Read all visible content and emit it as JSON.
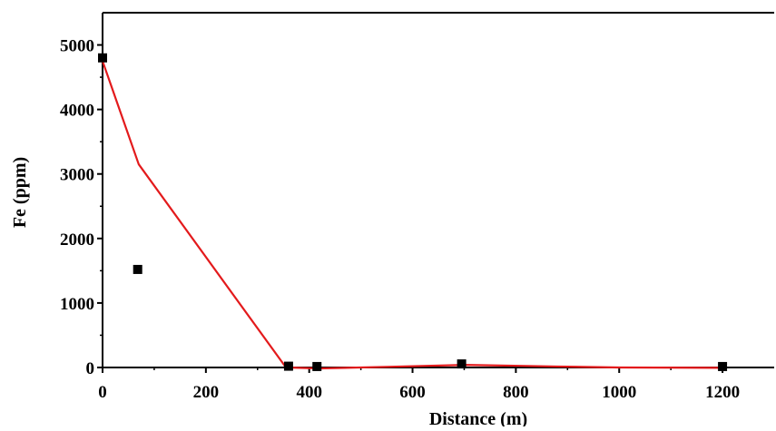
{
  "chart_data": {
    "type": "scatter",
    "title": "",
    "xlabel": "Distance (m)",
    "ylabel": "Fe (ppm)",
    "xlim": [
      0,
      1300
    ],
    "ylim": [
      0,
      5500
    ],
    "x_ticks": [
      0,
      200,
      400,
      600,
      800,
      1000,
      1200
    ],
    "y_ticks": [
      0,
      1000,
      2000,
      3000,
      4000,
      5000
    ],
    "grid": false,
    "series": [
      {
        "type": "scatter",
        "marker": "square",
        "color": "#000000",
        "points": [
          {
            "x": 0,
            "y": 4800
          },
          {
            "x": 68,
            "y": 1520
          },
          {
            "x": 360,
            "y": 20
          },
          {
            "x": 415,
            "y": 15
          },
          {
            "x": 695,
            "y": 55
          },
          {
            "x": 1200,
            "y": 15
          }
        ]
      },
      {
        "type": "line",
        "color": "#e31a1c",
        "points": [
          {
            "x": 0,
            "y": 4750
          },
          {
            "x": 70,
            "y": 3150
          },
          {
            "x": 355,
            "y": 0
          },
          {
            "x": 420,
            "y": -15
          },
          {
            "x": 550,
            "y": 10
          },
          {
            "x": 700,
            "y": 40
          },
          {
            "x": 880,
            "y": 15
          },
          {
            "x": 1000,
            "y": 0
          },
          {
            "x": 1200,
            "y": -5
          }
        ]
      }
    ]
  }
}
